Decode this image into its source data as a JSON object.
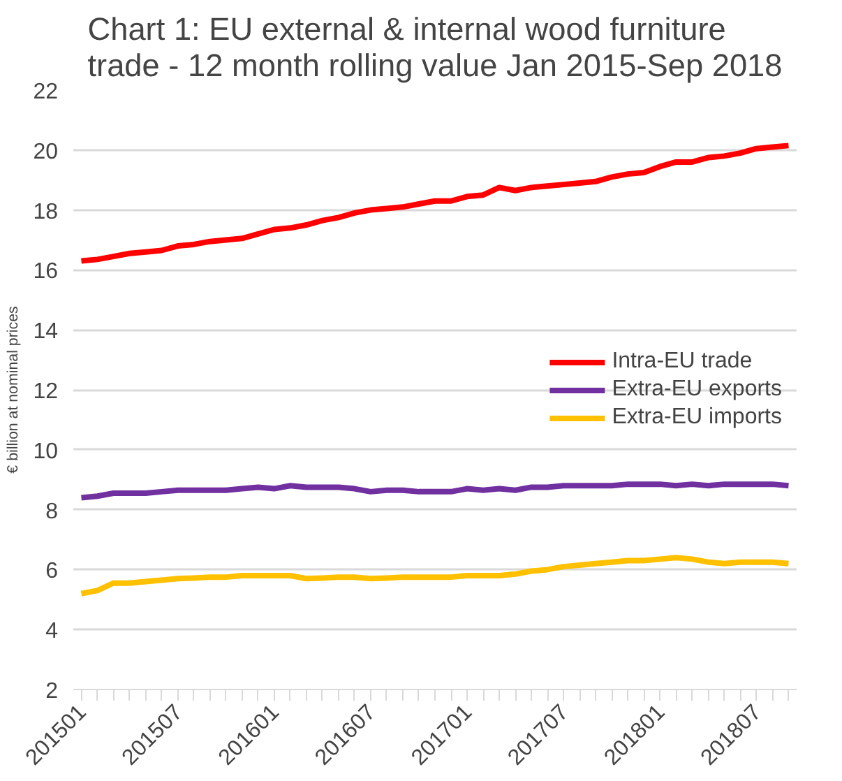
{
  "chart_data": {
    "type": "line",
    "title": "Chart 1: EU external & internal wood furniture trade - 12 month rolling value Jan 2015-Sep 2018",
    "ylabel": "€ billion at nominal prices",
    "categories": [
      "201501",
      null,
      null,
      null,
      null,
      null,
      "201507",
      null,
      null,
      null,
      null,
      null,
      "201601",
      null,
      null,
      null,
      null,
      null,
      "201607",
      null,
      null,
      null,
      null,
      null,
      "201701",
      null,
      null,
      null,
      null,
      null,
      "201707",
      null,
      null,
      null,
      null,
      null,
      "201801",
      null,
      null,
      null,
      null,
      null,
      "201807",
      null,
      null
    ],
    "series": [
      {
        "name": "Intra-EU trade",
        "color": "#ff0000",
        "values": [
          16.3,
          16.35,
          16.45,
          16.55,
          16.6,
          16.65,
          16.8,
          16.85,
          16.95,
          17.0,
          17.05,
          17.2,
          17.35,
          17.4,
          17.5,
          17.65,
          17.75,
          17.9,
          18.0,
          18.05,
          18.1,
          18.2,
          18.3,
          18.3,
          18.45,
          18.5,
          18.75,
          18.65,
          18.75,
          18.8,
          18.85,
          18.9,
          18.95,
          19.1,
          19.2,
          19.25,
          19.45,
          19.6,
          19.6,
          19.75,
          19.8,
          19.9,
          20.05,
          20.1,
          20.15
        ]
      },
      {
        "name": "Extra-EU exports",
        "color": "#7030a0",
        "values": [
          8.4,
          8.45,
          8.55,
          8.55,
          8.55,
          8.6,
          8.65,
          8.65,
          8.65,
          8.65,
          8.7,
          8.75,
          8.7,
          8.8,
          8.75,
          8.75,
          8.75,
          8.7,
          8.6,
          8.65,
          8.65,
          8.6,
          8.6,
          8.6,
          8.7,
          8.65,
          8.7,
          8.65,
          8.75,
          8.75,
          8.8,
          8.8,
          8.8,
          8.8,
          8.85,
          8.85,
          8.85,
          8.8,
          8.85,
          8.8,
          8.85,
          8.85,
          8.85,
          8.85,
          8.8
        ]
      },
      {
        "name": "Extra-EU imports",
        "color": "#ffc000",
        "values": [
          5.2,
          5.3,
          5.55,
          5.55,
          5.6,
          5.65,
          5.7,
          5.72,
          5.75,
          5.75,
          5.8,
          5.8,
          5.8,
          5.8,
          5.7,
          5.72,
          5.75,
          5.75,
          5.7,
          5.72,
          5.75,
          5.75,
          5.75,
          5.75,
          5.8,
          5.8,
          5.8,
          5.85,
          5.95,
          6.0,
          6.1,
          6.15,
          6.2,
          6.25,
          6.3,
          6.3,
          6.35,
          6.4,
          6.35,
          6.25,
          6.2,
          6.25,
          6.25,
          6.25,
          6.2
        ]
      }
    ],
    "ylim": [
      2,
      22
    ],
    "yticks": [
      2,
      4,
      6,
      8,
      10,
      12,
      14,
      16,
      18,
      20,
      22
    ],
    "grid": "y",
    "legend": "right",
    "marker": "none",
    "line_style": "solid"
  }
}
